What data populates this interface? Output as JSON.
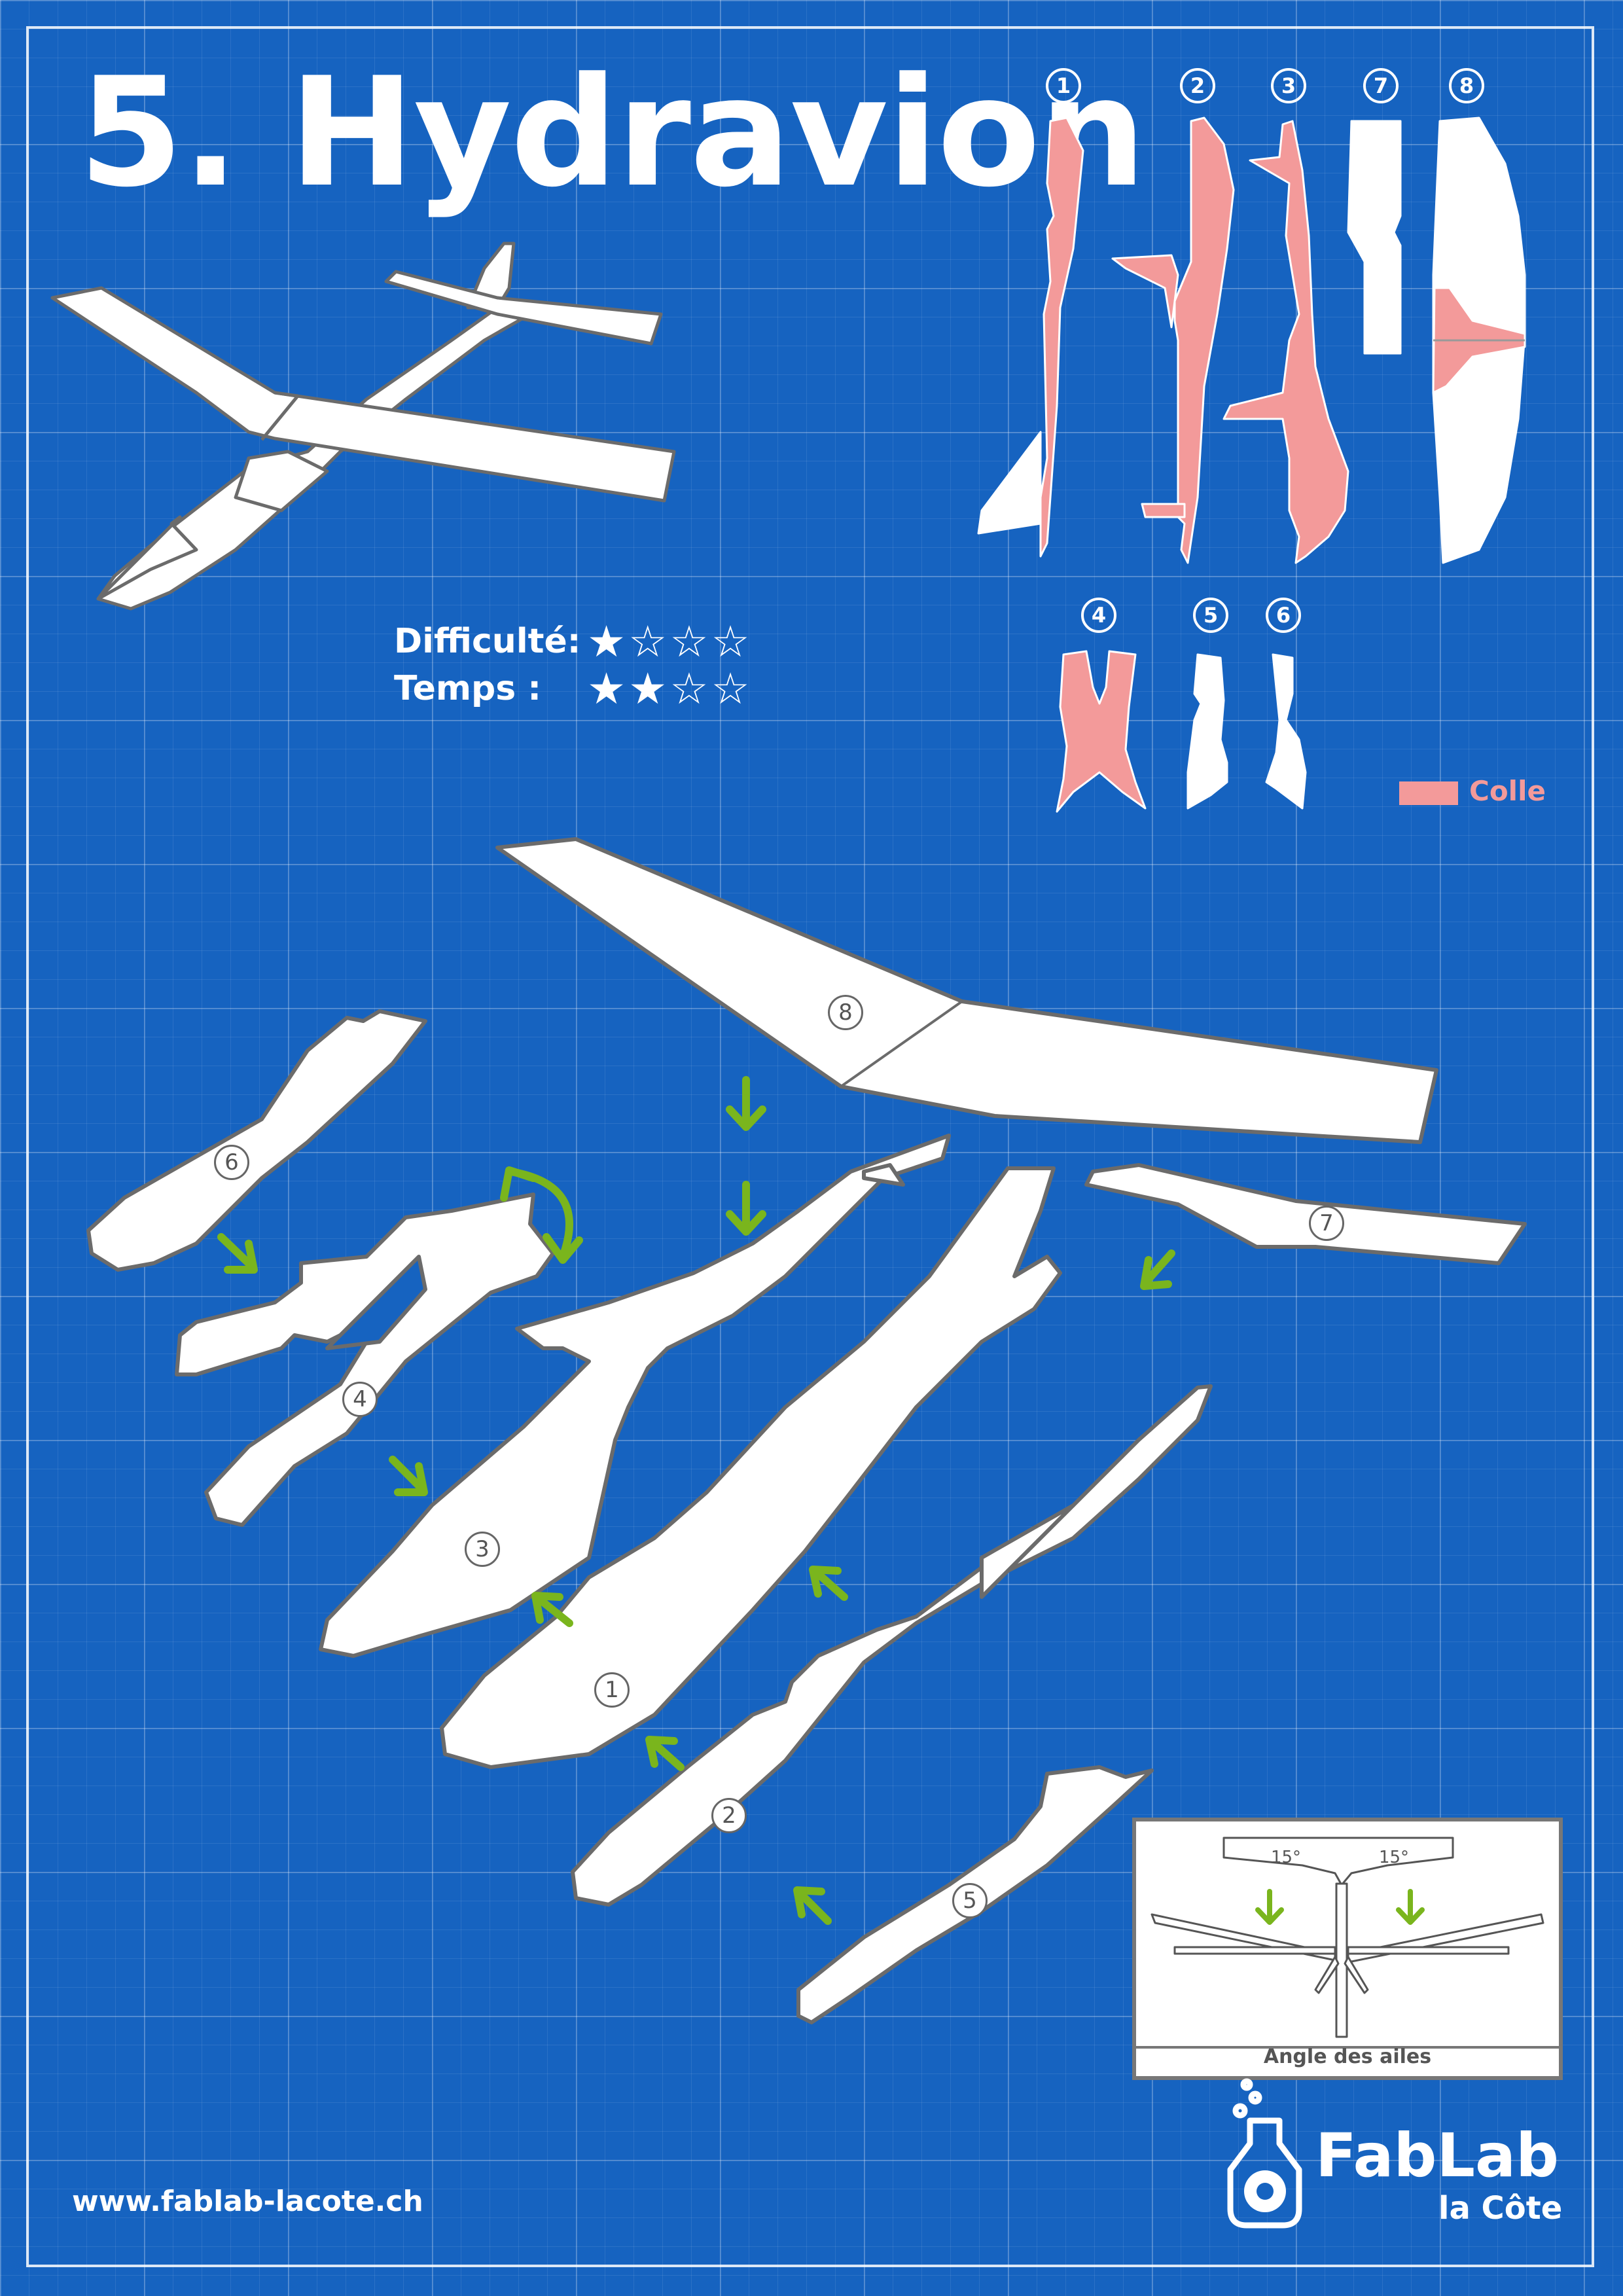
{
  "title": "5. Hydravion",
  "ratings": [
    {
      "label": "Difficulté:",
      "stars_filled": 1,
      "stars_total": 4
    },
    {
      "label": "Temps :",
      "stars_filled": 2,
      "stars_total": 4
    }
  ],
  "parts_overview": {
    "row1_labels": [
      "1",
      "2",
      "3",
      "7",
      "8"
    ],
    "row2_labels": [
      "4",
      "5",
      "6"
    ]
  },
  "legend": {
    "label": "Colle",
    "color": "#f39a9a"
  },
  "assembly_part_labels": [
    "8",
    "6",
    "7",
    "4",
    "3",
    "1",
    "2",
    "5"
  ],
  "inset": {
    "angle_left": "15°",
    "angle_right": "15°",
    "caption": "Angle des ailes"
  },
  "footer": {
    "url": "www.fablab-lacote.ch",
    "logo_name": "FabLab",
    "logo_sub": "la Côte"
  },
  "colors": {
    "background": "#1663c0",
    "part_fill": "#ffffff",
    "part_outline": "#6b6b6b",
    "glue": "#f39a9a",
    "arrow": "#7ab51d"
  }
}
